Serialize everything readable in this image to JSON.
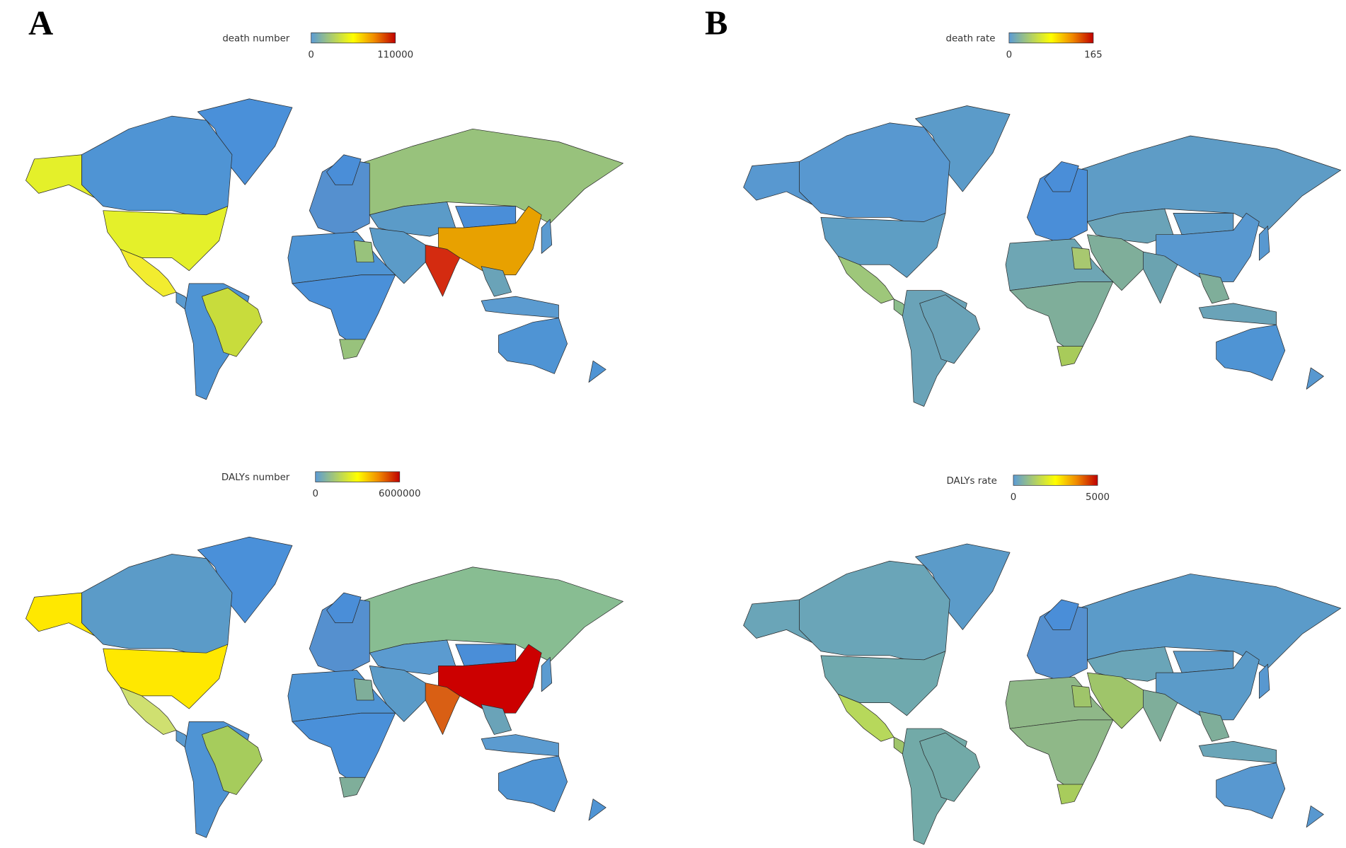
{
  "panels": [
    {
      "letter": "A"
    },
    {
      "letter": "B"
    }
  ],
  "maps": [
    {
      "legend": {
        "title": "death number",
        "min": 0,
        "max": 110000
      }
    },
    {
      "legend": {
        "title": "DALYs number",
        "min": 0,
        "max": 6000000
      }
    },
    {
      "legend": {
        "title": "death rate",
        "min": 0,
        "max": 165
      }
    },
    {
      "legend": {
        "title": "DALYs rate",
        "min": 0,
        "max": 5000
      }
    }
  ]
}
